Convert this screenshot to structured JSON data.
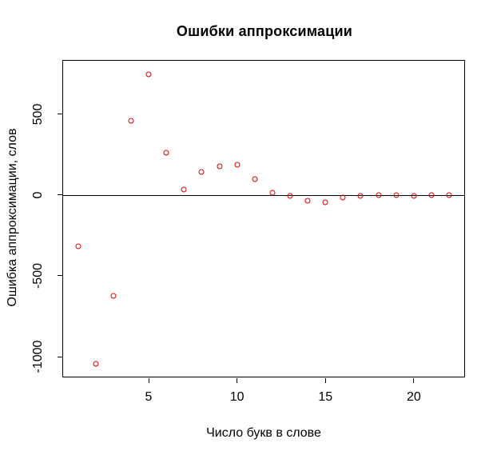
{
  "window": {
    "background": "#ffffff"
  },
  "chart_data": {
    "type": "scatter",
    "title": "Ошибки аппроксимации",
    "xlabel": "Число букв в слове",
    "ylabel": "Ошибка аппроксимации, слов",
    "x": [
      1,
      2,
      3,
      4,
      5,
      6,
      7,
      8,
      9,
      10,
      11,
      12,
      13,
      14,
      15,
      16,
      17,
      18,
      19,
      20,
      21,
      22
    ],
    "y": [
      -316,
      -1045,
      -625,
      460,
      745,
      260,
      35,
      140,
      178,
      186,
      97,
      16,
      -8,
      -35,
      -45,
      -18,
      -5,
      -3,
      -3,
      -4,
      -3,
      -2
    ],
    "x_ticks": [
      5,
      10,
      15,
      20
    ],
    "y_ticks": [
      500,
      0,
      -500,
      -1000
    ],
    "xlim": [
      0.14,
      22.9
    ],
    "ylim": [
      -1128,
      832
    ],
    "reference_line_y": 0,
    "grid": false,
    "legend": "none",
    "point_style": "open-circle",
    "point_color": "#dd0000",
    "frame_color": "#000000",
    "text_color": "#000000"
  }
}
